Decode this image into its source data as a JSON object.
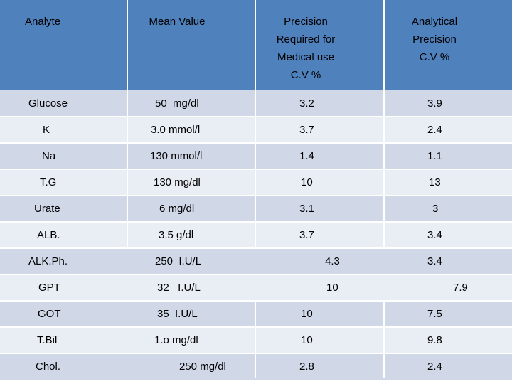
{
  "headers": {
    "analyte": "Analyte",
    "mean": "Mean Value",
    "precision_required": "Precision\nRequired for\nMedical use\nC.V %",
    "analytical_precision": "Analytical\nPrecision\nC.V %"
  },
  "rows": [
    {
      "analyte": "Glucose",
      "mean": "50  mg/dl",
      "req": "3.2",
      "ana": "3.9"
    },
    {
      "analyte": "K",
      "mean": "3.0 mmol/l",
      "req": "3.7",
      "ana": "2.4"
    },
    {
      "analyte": "Na",
      "mean": "130 mmol/l",
      "req": "1.4",
      "ana": "1.1"
    },
    {
      "analyte": "T.G",
      "mean": "130 mg/dl",
      "req": "10",
      "ana": "13"
    },
    {
      "analyte": "Urate",
      "mean": "6 mg/dl",
      "req": "3.1",
      "ana": "3"
    },
    {
      "analyte": "ALB.",
      "mean": "3.5 g/dl",
      "req": "3.7",
      "ana": "3.4"
    },
    {
      "analyte": "ALK.Ph.",
      "mean": "250  I.U/L",
      "req": "4.3",
      "ana": "3.4"
    },
    {
      "analyte": "GPT",
      "mean": "32   I.U/L",
      "req": "10",
      "ana": "7.9"
    },
    {
      "analyte": "GOT",
      "mean": "35  I.U/L",
      "req": "10",
      "ana": "7.5"
    },
    {
      "analyte": "T.Bil",
      "mean": "1.o mg/dl",
      "req": "10",
      "ana": "9.8"
    },
    {
      "analyte": "Chol.",
      "mean": "250 mg/dl",
      "req": "2.8",
      "ana": "2.4"
    }
  ]
}
